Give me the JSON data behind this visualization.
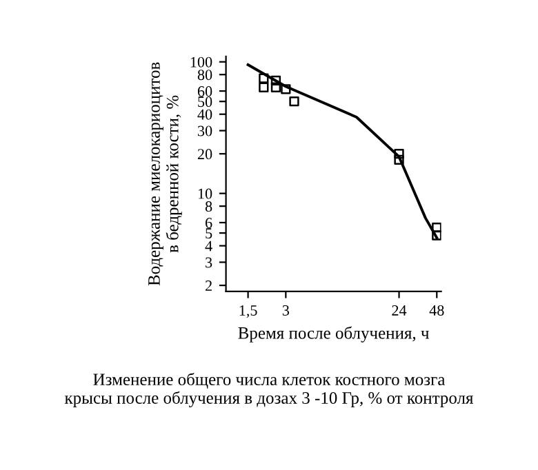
{
  "chart_data": {
    "type": "scatter",
    "xlabel": "Время после облучения, ч",
    "ylabel": "Водержание миелокариоцитов\nв бедренной кости, %",
    "annotations": [
      "Изменение общего числа клеток костного мозга\nкрысы после облучения в дозах 3 -10 Гр, % от контроля"
    ],
    "log": "xy",
    "xlim": [
      1,
      52
    ],
    "ylim": [
      1.8,
      110
    ],
    "xticks": [
      {
        "value": 1.5,
        "label": "1,5"
      },
      3,
      24,
      48
    ],
    "yticks": [
      2,
      3,
      4,
      5,
      6,
      8,
      10,
      20,
      30,
      40,
      50,
      60,
      80,
      100
    ],
    "grid": false,
    "marker": "square",
    "series": [
      {
        "color": "#000000",
        "x": [
          2,
          2,
          2.5,
          2.5,
          3,
          3.5,
          24,
          24,
          48,
          48
        ],
        "values": [
          64,
          75,
          64,
          72,
          62,
          50,
          18,
          20,
          5.5,
          4.8
        ]
      },
      {
        "type": "line",
        "color": "#000000",
        "marker": "none",
        "x": [
          1.5,
          3,
          11,
          24,
          39,
          48
        ],
        "values": [
          95,
          65,
          38,
          19,
          6.5,
          4.6
        ]
      }
    ]
  }
}
